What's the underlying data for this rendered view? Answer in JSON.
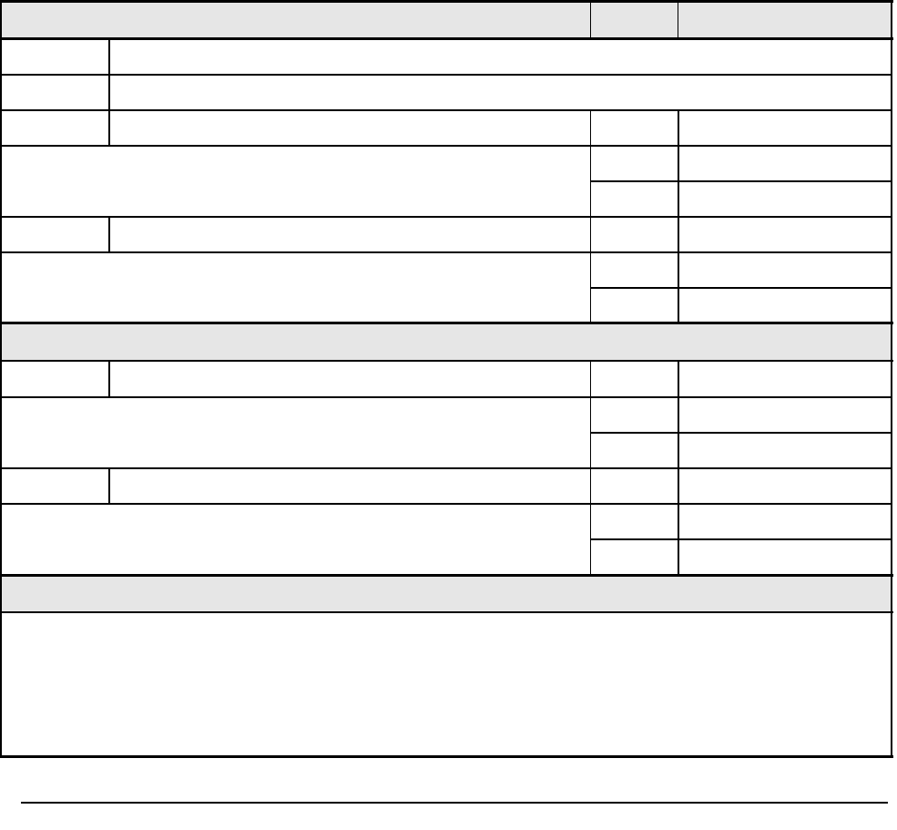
{
  "form": {
    "header_row": {
      "col1": "",
      "col2": "",
      "col3": ""
    },
    "section_1_title": "",
    "section_2_title": "",
    "notes": ""
  }
}
